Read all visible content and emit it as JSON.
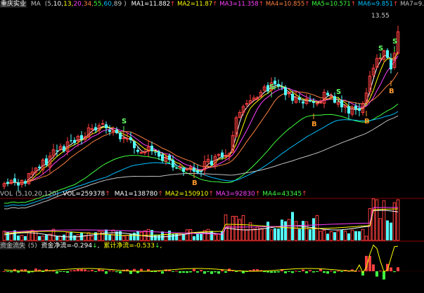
{
  "stock_name": "重庆实业",
  "colors": {
    "up": "#ff4040",
    "down": "#54ffff",
    "ma1": "#ffffff",
    "ma2": "#ffff00",
    "ma3": "#ff40ff",
    "ma4": "#ff8040",
    "ma5": "#40ff40",
    "ma6": "#00c0ff",
    "ma7": "#c0c0c0",
    "signal_s": "#66ff66",
    "signal_b": "#ff9a2a"
  },
  "main_header": {
    "ma_label": "MA",
    "ma_params_open": "(",
    "ma_params": [
      "5",
      "10",
      "13",
      "20",
      "34",
      "55",
      "60",
      "89"
    ],
    "ma_params_close": ")",
    "ma_values": [
      {
        "label": "MA1=11.882",
        "arrow": "↑"
      },
      {
        "label": "MA2=11.87",
        "arrow": "↑"
      },
      {
        "label": "MA3=11.358",
        "arrow": "↑"
      },
      {
        "label": "MA4=10.855",
        "arrow": "↑"
      },
      {
        "label": "MA5=10.571",
        "arrow": "↑"
      },
      {
        "label": "MA6=9.851",
        "arrow": "↑"
      },
      {
        "label": "MA7=9.",
        "arrow": ""
      }
    ]
  },
  "price_high_label": "13.55",
  "vol_header": {
    "title": "VOL",
    "params": "(5,10,20,120)",
    "vol_value": "VOL=259378",
    "vol_arrow": "↑",
    "ma_values": [
      {
        "label": "MA1=138780",
        "arrow": "↑"
      },
      {
        "label": "MA2=150910",
        "arrow": "↑"
      },
      {
        "label": "MA3=92830",
        "arrow": "↑"
      },
      {
        "label": "MA4=43345",
        "arrow": "↑"
      }
    ]
  },
  "flow_header": {
    "title": "资金流失",
    "params": "(5)",
    "net_flow": "资金净流=-0.294",
    "net_arrow": "↓",
    "cum_flow": "累计净流=-0.533",
    "cum_arrow": "↓"
  },
  "signals": {
    "s": "S",
    "b": "B"
  }
}
